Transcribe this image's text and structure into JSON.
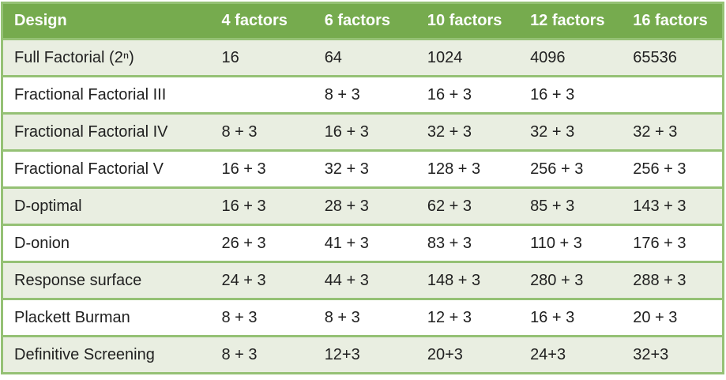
{
  "colors": {
    "header_bg": "#76ab4e",
    "header_text": "#ffffff",
    "row_alt_bg": "#e9eee1",
    "row_bg": "#ffffff",
    "border": "#95c175",
    "text": "#212121"
  },
  "chart_data": {
    "type": "table",
    "columns": [
      "Design",
      "4 factors",
      "6 factors",
      "10 factors",
      "12 factors",
      "16 factors"
    ],
    "rows": [
      {
        "design": "Full Factorial (2ⁿ)",
        "values": [
          "16",
          "64",
          "1024",
          "4096",
          "65536"
        ]
      },
      {
        "design": "Fractional Factorial III",
        "values": [
          "",
          "8 + 3",
          "16 + 3",
          "16 + 3",
          ""
        ]
      },
      {
        "design": "Fractional Factorial IV",
        "values": [
          "8 + 3",
          "16 + 3",
          "32 + 3",
          "32 + 3",
          "32 + 3"
        ]
      },
      {
        "design": "Fractional Factorial V",
        "values": [
          "16 + 3",
          "32 + 3",
          "128 + 3",
          "256 + 3",
          "256 + 3"
        ]
      },
      {
        "design": "D-optimal",
        "values": [
          "16 + 3",
          "28 + 3",
          "62 + 3",
          "85 + 3",
          "143 + 3"
        ]
      },
      {
        "design": "D-onion",
        "values": [
          "26 + 3",
          "41 + 3",
          "83 + 3",
          "110 + 3",
          "176 + 3"
        ]
      },
      {
        "design": "Response surface",
        "values": [
          "24 + 3",
          "44 + 3",
          "148 + 3",
          "280 + 3",
          "288 + 3"
        ]
      },
      {
        "design": "Plackett Burman",
        "values": [
          "8 + 3",
          "8 + 3",
          "12 + 3",
          "16 + 3",
          "20 + 3"
        ]
      },
      {
        "design": "Definitive Screening",
        "values": [
          "8 + 3",
          "12+3",
          "20+3",
          "24+3",
          "32+3"
        ]
      }
    ]
  }
}
